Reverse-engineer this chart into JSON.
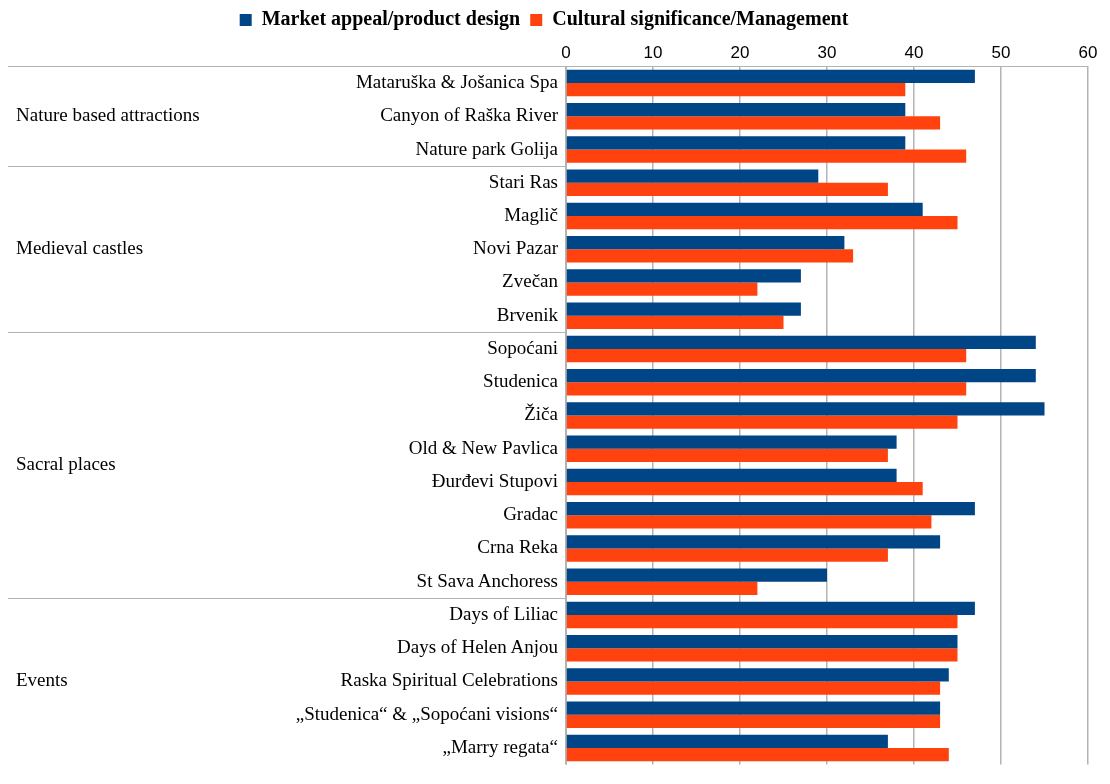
{
  "chart_data": {
    "type": "bar",
    "orientation": "horizontal",
    "categories": [
      "Mataruška & Jošanica Spa",
      "Canyon of Raška River",
      "Nature park Golija",
      "Stari Ras",
      "Maglič",
      "Novi Pazar",
      "Zvečan",
      "Brvenik",
      "Sopoćani",
      "Studenica",
      "Žiča",
      "Old & New Pavlica",
      "Đurđevi Stupovi",
      "Gradac",
      "Crna Reka",
      "St Sava Anchoress",
      "Days of Liliac",
      "Days of Helen Anjou",
      "Raska Spiritual Celebrations",
      "„Studenica“ & „Sopoćani visions“",
      "„Marry regata“"
    ],
    "series": [
      {
        "name": "Market appeal/product design",
        "color": "#004586",
        "values": [
          47,
          39,
          39,
          29,
          41,
          32,
          27,
          27,
          54,
          54,
          55,
          38,
          38,
          47,
          43,
          30,
          47,
          45,
          44,
          43,
          37
        ]
      },
      {
        "name": "Cultural significance/Management",
        "color": "#ff420e",
        "values": [
          39,
          43,
          46,
          37,
          45,
          33,
          22,
          25,
          46,
          46,
          45,
          37,
          41,
          42,
          37,
          22,
          45,
          45,
          43,
          43,
          44
        ]
      }
    ],
    "xlim": [
      0,
      60
    ],
    "xticks": [
      0,
      10,
      20,
      30,
      40,
      50,
      60
    ],
    "grid": "x",
    "legend": "top",
    "annotations": [
      "Nature based attractions",
      "Medieval castles",
      "Sacral places",
      "Events"
    ]
  }
}
